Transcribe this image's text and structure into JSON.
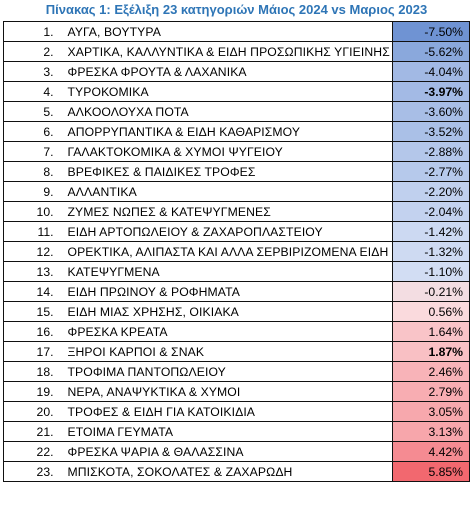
{
  "title": "Πίνακας 1: Εξέλιξη 23 κατηγοριών Μάιος 2024 vs Μαριος 2023",
  "rows": [
    {
      "num": "1.",
      "name": "ΑΥΓΑ, ΒΟΥΤΥΡΑ",
      "value": "-7.50%",
      "color": "#6f93d3",
      "bold": false
    },
    {
      "num": "2.",
      "name": "ΧΑΡΤΙΚΑ, ΚΑΛΛΥΝΤΙΚΑ & ΕΙΔΗ ΠΡΟΣΩΠΙΚΗΣ ΥΓΙΕΙΝΗΣ",
      "value": "-5.62%",
      "color": "#8aa8dc",
      "bold": false
    },
    {
      "num": "3.",
      "name": "ΦΡΕΣΚΑ ΦΡΟΥΤΑ & ΛΑΧΑΝΙΚΑ",
      "value": "-4.04%",
      "color": "#a2b9e4",
      "bold": false
    },
    {
      "num": "4.",
      "name": "ΤΥΡΟΚΟΜΙΚΑ",
      "value": "-3.97%",
      "color": "#a3bae5",
      "bold": true
    },
    {
      "num": "5.",
      "name": "ΑΛΚΟΟΛΟΥΧΑ ΠΟΤΑ",
      "value": "-3.60%",
      "color": "#a8bee6",
      "bold": false
    },
    {
      "num": "6.",
      "name": "ΑΠΟΡΡΥΠΑΝΤΙΚΑ & ΕΙΔΗ ΚΑΘΑΡΙΣΜΟΥ",
      "value": "-3.52%",
      "color": "#aac0e7",
      "bold": false
    },
    {
      "num": "7.",
      "name": "ΓΑΛΑΚΤΟΚΟΜΙΚΑ & ΧΥΜΟΙ ΨΥΓΕΙΟΥ",
      "value": "-2.88%",
      "color": "#b4c7ea",
      "bold": false
    },
    {
      "num": "8.",
      "name": "ΒΡΕΦΙΚΕΣ & ΠΑΙΔΙΚΕΣ ΤΡΟΦΕΣ",
      "value": "-2.77%",
      "color": "#b6c9eb",
      "bold": false
    },
    {
      "num": "9.",
      "name": "ΑΛΛΑΝΤΙΚΑ",
      "value": "-2.20%",
      "color": "#c0d0ee",
      "bold": false
    },
    {
      "num": "10.",
      "name": "ΖΥΜΕΣ ΝΩΠΕΣ & ΚΑΤΕΨΥΓΜΕΝΕΣ",
      "value": "-2.04%",
      "color": "#c3d2ef",
      "bold": false
    },
    {
      "num": "11.",
      "name": "ΕΙΔΗ ΑΡΤΟΠΩΛΕΙΟΥ & ΖΑΧΑΡΟΠΛΑΣΤΕΙΟΥ",
      "value": "-1.42%",
      "color": "#ccd9f2",
      "bold": false
    },
    {
      "num": "12.",
      "name": "ΟΡΕΚΤΙΚΑ, ΑΛΙΠΑΣΤΑ ΚΑΙ ΑΛΛΑ ΣΕΡΒΙΡΙΖΟΜΕΝΑ ΕΙΔΗ",
      "value": "-1.32%",
      "color": "#cedaf2",
      "bold": false
    },
    {
      "num": "13.",
      "name": "ΚΑΤΕΨΥΓΜΕΝΑ",
      "value": "-1.10%",
      "color": "#d2ddf3",
      "bold": false
    },
    {
      "num": "14.",
      "name": "ΕΙΔΗ ΠΡΩΙΝΟΥ & ΡΟΦΗΜΑΤΑ",
      "value": "-0.21%",
      "color": "#f3dde2",
      "bold": false
    },
    {
      "num": "15.",
      "name": "ΕΙΔΗ ΜΙΑΣ ΧΡΗΣΗΣ, ΟΙΚΙΑΚΑ",
      "value": "0.56%",
      "color": "#fadadd",
      "bold": false
    },
    {
      "num": "16.",
      "name": "ΦΡΕΣΚΑ ΚΡΕΑΤΑ",
      "value": "1.64%",
      "color": "#f9c4c8",
      "bold": false
    },
    {
      "num": "17.",
      "name": "ΞΗΡΟΙ ΚΑΡΠΟΙ & ΣΝΑΚ",
      "value": "1.87%",
      "color": "#f9c0c4",
      "bold": true
    },
    {
      "num": "18.",
      "name": "ΤΡΟΦΙΜΑ ΠΑΝΤΟΠΩΛΕΙΟΥ",
      "value": "2.46%",
      "color": "#f8b3b8",
      "bold": false
    },
    {
      "num": "19.",
      "name": "ΝΕΡΑ, ΑΝΑΨΥΚΤΙΚΑ & ΧΥΜΟΙ",
      "value": "2.79%",
      "color": "#f8adb2",
      "bold": false
    },
    {
      "num": "20.",
      "name": "ΤΡΟΦΕΣ & ΕΙΔΗ ΓΙΑ ΚΑΤΟΙΚΙΔΙΑ",
      "value": "3.05%",
      "color": "#f7a8ad",
      "bold": false
    },
    {
      "num": "21.",
      "name": "ΕΤΟΙΜΑ ΓΕΥΜΑΤΑ",
      "value": "3.13%",
      "color": "#f7a6ab",
      "bold": false
    },
    {
      "num": "22.",
      "name": "ΦΡΕΣΚΑ ΨΑΡΙΑ & ΘΑΛΑΣΣΙΝΑ",
      "value": "4.42%",
      "color": "#f58b92",
      "bold": false
    },
    {
      "num": "23.",
      "name": "ΜΠΙΣΚΟΤΑ, ΣΟΚΟΛΑΤΕΣ & ΖΑΧΑΡΩΔΗ",
      "value": "5.85%",
      "color": "#f2686f",
      "bold": false
    }
  ]
}
